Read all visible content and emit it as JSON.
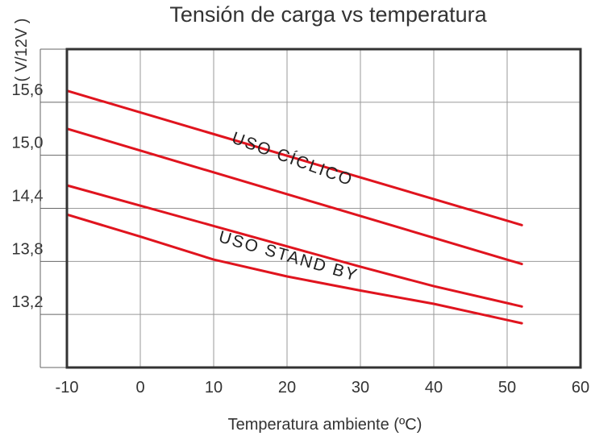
{
  "chart_data": {
    "type": "line",
    "title": "Tensión de carga vs temperatura",
    "xlabel": "Temperatura ambiente (ºC)",
    "ylabel": "( V/12V )",
    "xlim": [
      -10,
      60
    ],
    "ylim": [
      12.6,
      16.2
    ],
    "x_ticks": [
      -10,
      0,
      10,
      20,
      30,
      40,
      50,
      60
    ],
    "x_tick_labels": [
      "-10",
      "0",
      "10",
      "20",
      "30",
      "40",
      "50",
      "60"
    ],
    "y_ticks": [
      13.2,
      13.8,
      14.4,
      15.0,
      15.6
    ],
    "y_tick_labels": [
      "13,2",
      "13,8",
      "14,4",
      "15,0",
      "15,6"
    ],
    "grid": true,
    "series": [
      {
        "x": [
          -10,
          52
        ],
        "y": [
          15.73,
          14.21
        ]
      },
      {
        "x": [
          -10,
          52
        ],
        "y": [
          15.3,
          13.77
        ]
      },
      {
        "x": [
          -10,
          0,
          10,
          20,
          30,
          40,
          52
        ],
        "y": [
          14.66,
          14.43,
          14.2,
          13.97,
          13.74,
          13.52,
          13.29
        ]
      },
      {
        "x": [
          -10,
          0,
          10,
          20,
          30,
          40,
          52
        ],
        "y": [
          14.33,
          14.08,
          13.82,
          13.63,
          13.47,
          13.32,
          13.1
        ]
      }
    ],
    "annotations": [
      {
        "text": "USO CÍCLICO",
        "x": 20.5,
        "y": 14.9,
        "angle": 20
      },
      {
        "text": "USO STAND BY",
        "x": 20,
        "y": 13.8,
        "angle": 16
      }
    ],
    "line_color": "#e0141e",
    "grid_color": "#999999",
    "frame_color": "#333333"
  }
}
